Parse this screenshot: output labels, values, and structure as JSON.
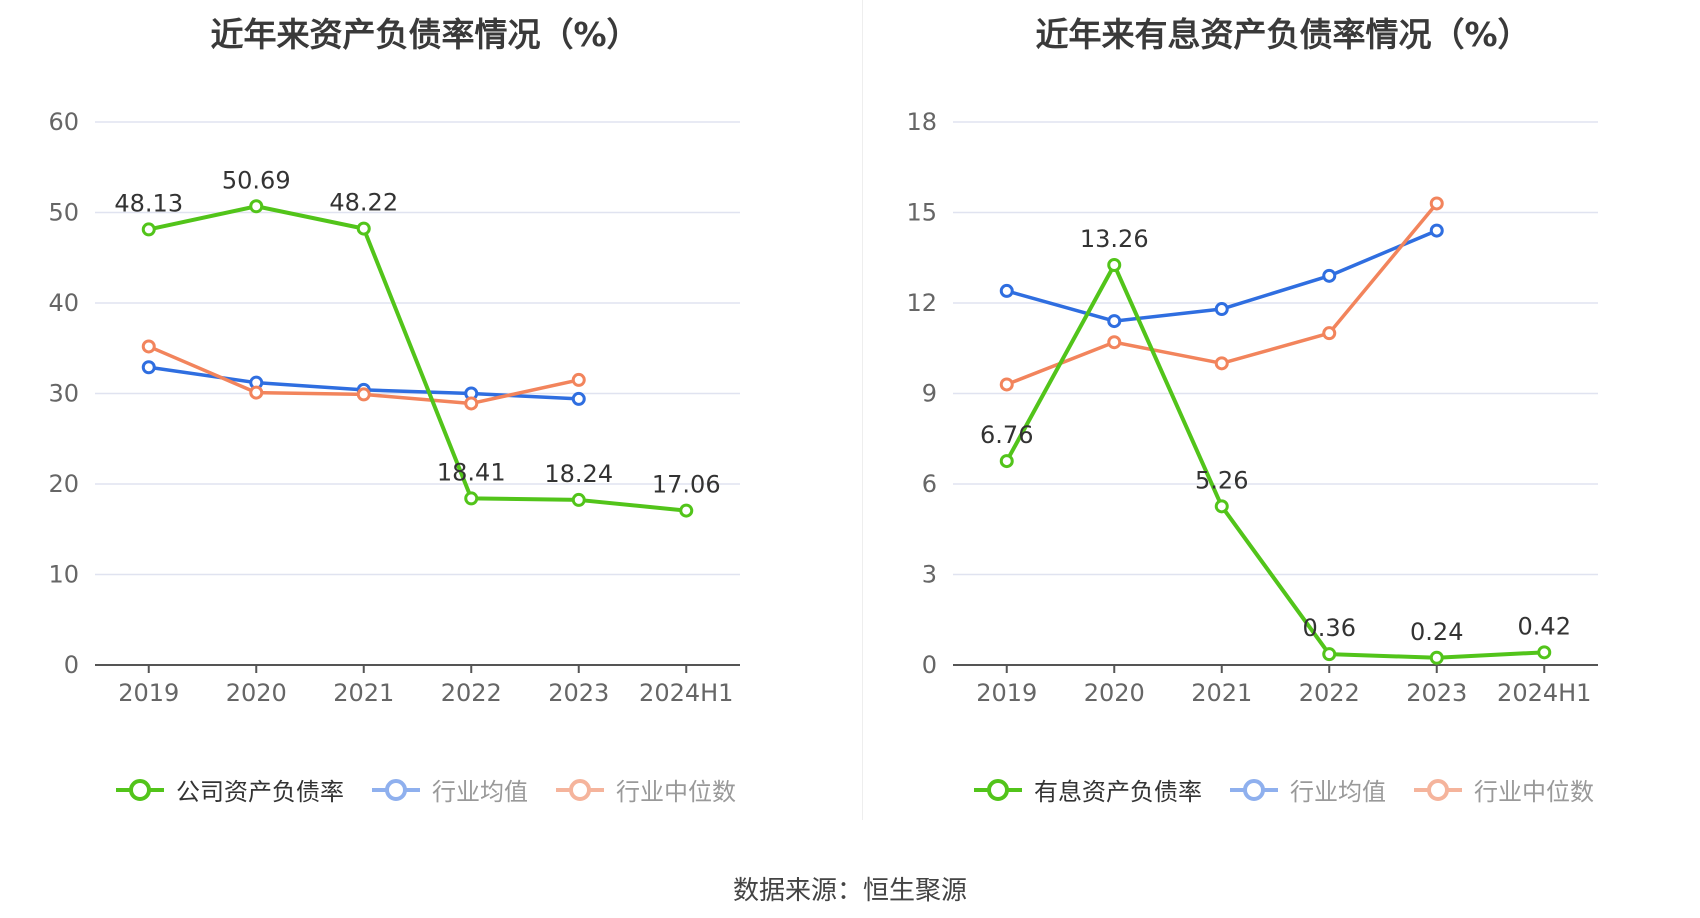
{
  "source": "数据来源：恒生聚源",
  "colors": {
    "company": "#52c41a",
    "avg": "#2f6ee0",
    "median": "#f2845c",
    "grid": "#e0e3f0",
    "axis": "#555555"
  },
  "chart_data": [
    {
      "type": "line",
      "title": "近年来资产负债率情况（%）",
      "categories": [
        "2019",
        "2020",
        "2021",
        "2022",
        "2023",
        "2024H1"
      ],
      "ylim": [
        0,
        60
      ],
      "yticks": [
        0,
        10,
        20,
        30,
        40,
        50,
        60
      ],
      "series": [
        {
          "name": "公司资产负债率",
          "values": [
            48.13,
            50.69,
            48.22,
            18.41,
            18.24,
            17.06
          ],
          "labels": [
            "48.13",
            "50.69",
            "48.22",
            "18.41",
            "18.24",
            "17.06"
          ]
        },
        {
          "name": "行业均值",
          "values": [
            32.9,
            31.2,
            30.4,
            30.0,
            29.4,
            null
          ]
        },
        {
          "name": "行业中位数",
          "values": [
            35.2,
            30.1,
            29.9,
            28.9,
            31.5,
            null
          ]
        }
      ],
      "grid": true,
      "legend": "bottom"
    },
    {
      "type": "line",
      "title": "近年来有息资产负债率情况（%）",
      "categories": [
        "2019",
        "2020",
        "2021",
        "2022",
        "2023",
        "2024H1"
      ],
      "ylim": [
        0,
        18
      ],
      "yticks": [
        0,
        3,
        6,
        9,
        12,
        15,
        18
      ],
      "series": [
        {
          "name": "有息资产负债率",
          "values": [
            6.76,
            13.26,
            5.26,
            0.36,
            0.24,
            0.42
          ],
          "labels": [
            "6.76",
            "13.26",
            "5.26",
            "0.36",
            "0.24",
            "0.42"
          ]
        },
        {
          "name": "行业均值",
          "values": [
            12.4,
            11.4,
            11.8,
            12.9,
            14.4,
            null
          ]
        },
        {
          "name": "行业中位数",
          "values": [
            9.3,
            10.7,
            10.0,
            11.0,
            15.3,
            null
          ]
        }
      ],
      "grid": true,
      "legend": "bottom"
    }
  ]
}
